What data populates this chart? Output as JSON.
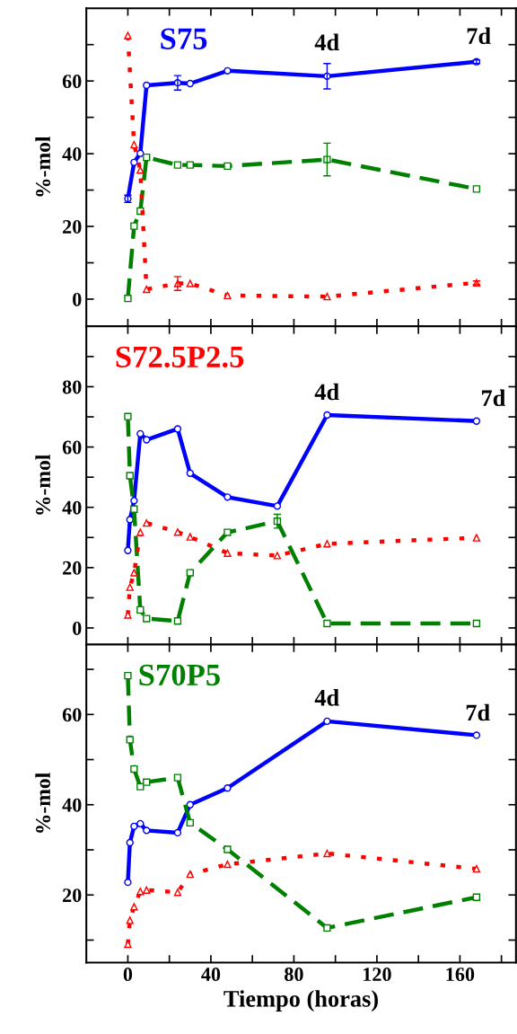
{
  "chart_data": [
    {
      "type": "line",
      "title": "S75",
      "ylabel": "%-mol",
      "x": [
        0,
        3,
        6,
        9,
        24,
        30,
        48,
        96,
        168
      ],
      "series": [
        {
          "color": "#0000ff",
          "marker": "circle",
          "line_style": "solid",
          "values": [
            27.6,
            37.6,
            40.1,
            58.8,
            59.5,
            59.3,
            62.8,
            61.3,
            65.3
          ],
          "errors": [
            1,
            null,
            null,
            null,
            2,
            null,
            null,
            3.5,
            0.5
          ]
        },
        {
          "color": "#008000",
          "marker": "square",
          "line_style": "dashed",
          "values": [
            0.2,
            20.1,
            24.2,
            39,
            36.9,
            36.9,
            36.6,
            38.4,
            30.3
          ],
          "errors": [
            null,
            null,
            null,
            null,
            null,
            null,
            null,
            4.5,
            null
          ]
        },
        {
          "color": "#ff0000",
          "marker": "triangle",
          "line_style": "dotted",
          "values": [
            72.5,
            42.5,
            35.5,
            2.7,
            4.3,
            4.3,
            1.0,
            0.7,
            4.5
          ],
          "errors": [
            null,
            null,
            null,
            null,
            1.9,
            null,
            null,
            null,
            0.5
          ]
        }
      ],
      "annotations": [
        "4d",
        "7d"
      ],
      "xlim": [
        -20,
        187
      ],
      "xticks": [
        0,
        {
          "value": 20,
          "label": null
        },
        40,
        {
          "value": 60,
          "label": null
        },
        80,
        {
          "value": 100,
          "label": null
        },
        120,
        {
          "value": 140,
          "label": null
        },
        160,
        {
          "value": 180,
          "label": null
        }
      ],
      "ylim": [
        -7.5,
        80
      ],
      "yticks": [
        0,
        {
          "value": 10,
          "label": null
        },
        20,
        {
          "value": 30,
          "label": null
        },
        40,
        {
          "value": 50,
          "label": null
        },
        60,
        {
          "value": 70,
          "label": null
        }
      ],
      "tick_labels": "y"
    },
    {
      "type": "line",
      "title": "S72.5P2.5",
      "ylabel": "%-mol",
      "x": [
        0,
        1,
        3,
        6,
        9,
        24,
        30,
        48,
        72,
        96,
        168
      ],
      "series": [
        {
          "color": "#0000ff",
          "marker": "circle",
          "line_style": "solid",
          "values": [
            25.7,
            35.9,
            42.2,
            64.4,
            62.4,
            66.0,
            51.3,
            43.4,
            40.4,
            70.6,
            68.6
          ]
        },
        {
          "color": "#008000",
          "marker": "square",
          "line_style": "dashed",
          "values": [
            70.1,
            50.5,
            39.4,
            6.0,
            3.1,
            2.3,
            18.3,
            31.7,
            35.4,
            1.5,
            1.5
          ],
          "errors": [
            null,
            null,
            null,
            null,
            null,
            null,
            null,
            null,
            2.3,
            null,
            null
          ]
        },
        {
          "color": "#ff0000",
          "marker": "triangle",
          "line_style": "dotted",
          "values": [
            4.3,
            13.5,
            18.3,
            31.7,
            34.8,
            31.8,
            30.2,
            24.8,
            24.0,
            27.9,
            29.9
          ]
        }
      ],
      "annotations": [
        "4d",
        "7d"
      ],
      "xlim": [
        -20,
        187
      ],
      "xticks": [
        0,
        {
          "value": 20,
          "label": null
        },
        40,
        {
          "value": 60,
          "label": null
        },
        80,
        {
          "value": 100,
          "label": null
        },
        120,
        {
          "value": 140,
          "label": null
        },
        160,
        {
          "value": 180,
          "label": null
        }
      ],
      "ylim": [
        -5.5,
        100
      ],
      "yticks": [
        0,
        {
          "value": 10,
          "label": null
        },
        20,
        {
          "value": 30,
          "label": null
        },
        40,
        {
          "value": 50,
          "label": null
        },
        60,
        {
          "value": 70,
          "label": null
        },
        80,
        {
          "value": 90,
          "label": null
        }
      ],
      "tick_labels": "y"
    },
    {
      "type": "line",
      "title": "S70P5",
      "ylabel": "%-mol",
      "xlabel": "Tiempo (horas)",
      "x": [
        0,
        1,
        3,
        6,
        9,
        24,
        30,
        48,
        96,
        168
      ],
      "series": [
        {
          "color": "#0000ff",
          "marker": "circle",
          "line_style": "solid",
          "values": [
            22.8,
            31.6,
            35.2,
            35.8,
            34.3,
            33.8,
            40.0,
            43.7,
            58.5,
            55.4
          ]
        },
        {
          "color": "#008000",
          "marker": "square",
          "line_style": "dashed",
          "values": [
            68.6,
            54.4,
            47.9,
            44.0,
            45.0,
            46.0,
            36.0,
            30.1,
            12.7,
            19.5
          ]
        },
        {
          "color": "#ff0000",
          "marker": "triangle",
          "line_style": "dotted",
          "values": [
            9.1,
            14.4,
            17.4,
            20.8,
            21.1,
            20.6,
            24.6,
            26.8,
            29.2,
            25.8
          ]
        }
      ],
      "annotations": [
        "4d",
        "7d"
      ],
      "xlim": [
        -20,
        187
      ],
      "xticks": [
        0,
        {
          "value": 20,
          "label": null
        },
        40,
        {
          "value": 60,
          "label": null
        },
        80,
        {
          "value": 100,
          "label": null
        },
        120,
        {
          "value": 140,
          "label": null
        },
        160,
        {
          "value": 180,
          "label": null
        }
      ],
      "ylim": [
        5,
        75.5
      ],
      "yticks": [
        {
          "value": 10,
          "label": null
        },
        20,
        {
          "value": 30,
          "label": null
        },
        40,
        {
          "value": 50,
          "label": null
        },
        60,
        {
          "value": 70,
          "label": null
        }
      ]
    }
  ]
}
